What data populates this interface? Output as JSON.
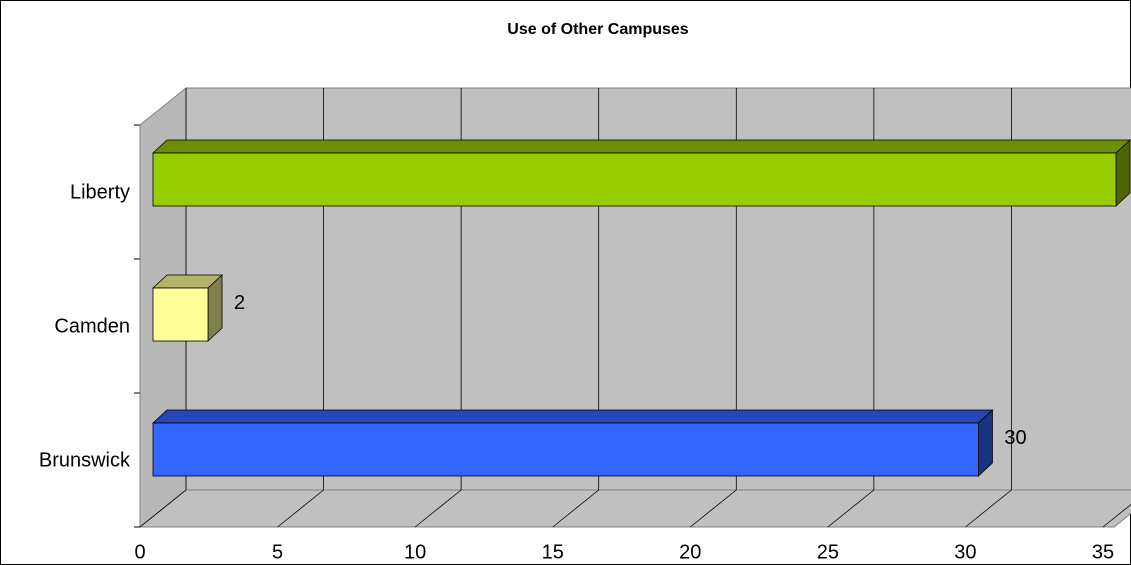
{
  "chart_data": {
    "type": "bar3d",
    "orientation": "horizontal",
    "title": "Use of Other Campuses",
    "categories": [
      "Brunswick",
      "Camden",
      "Liberty"
    ],
    "values": [
      30,
      2,
      35
    ],
    "colors": [
      "#3366ff",
      "#ffff99",
      "#99cc00"
    ],
    "xlim": [
      0,
      35
    ],
    "xticks": [
      0,
      5,
      10,
      15,
      20,
      25,
      30,
      35
    ],
    "grid": true
  }
}
